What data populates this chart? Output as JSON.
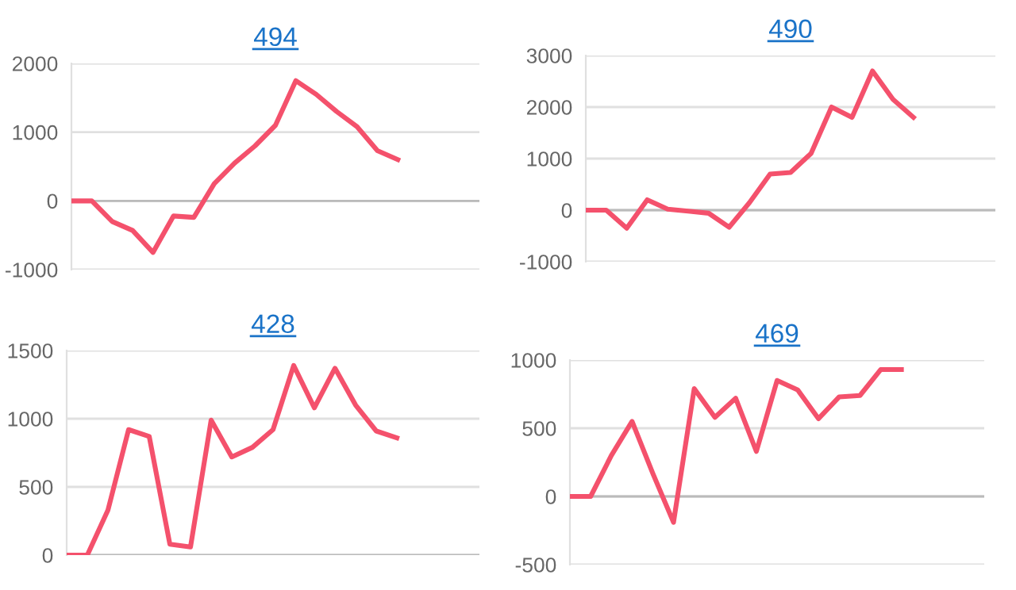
{
  "chart_data": [
    {
      "type": "line",
      "title": "494",
      "categories": [
        null,
        null,
        null,
        null,
        null,
        null,
        null,
        null,
        null,
        null,
        null,
        null,
        null,
        null,
        null,
        null,
        null,
        null,
        null,
        null,
        null
      ],
      "series": [
        {
          "color": "#f4516c",
          "values": [
            0,
            0,
            -300,
            -430,
            -750,
            -220,
            -240,
            250,
            550,
            800,
            1100,
            1750,
            1550,
            1300,
            1080,
            730,
            600,
            null,
            null,
            null,
            null
          ]
        }
      ],
      "ylim": [
        -1000,
        2000
      ],
      "yticks": [
        -1000,
        0,
        1000,
        2000
      ],
      "grid": "y",
      "tick_labels": "y",
      "marker": "none",
      "line_style": "solid"
    },
    {
      "type": "line",
      "title": "490",
      "categories": [
        null,
        null,
        null,
        null,
        null,
        null,
        null,
        null,
        null,
        null,
        null,
        null,
        null,
        null,
        null,
        null,
        null,
        null,
        null,
        null,
        null
      ],
      "series": [
        {
          "color": "#f4516c",
          "values": [
            0,
            0,
            -350,
            200,
            20,
            -20,
            -60,
            -330,
            150,
            700,
            730,
            1100,
            2000,
            1800,
            2700,
            2150,
            1800,
            null,
            null,
            null,
            null
          ]
        }
      ],
      "ylim": [
        -1000,
        3000
      ],
      "yticks": [
        -1000,
        0,
        1000,
        2000,
        3000
      ],
      "grid": "y",
      "tick_labels": "y",
      "marker": "none",
      "line_style": "solid"
    },
    {
      "type": "line",
      "title": "428",
      "categories": [
        null,
        null,
        null,
        null,
        null,
        null,
        null,
        null,
        null,
        null,
        null,
        null,
        null,
        null,
        null,
        null,
        null,
        null,
        null,
        null,
        null
      ],
      "series": [
        {
          "color": "#f4516c",
          "values": [
            0,
            0,
            330,
            920,
            870,
            80,
            60,
            990,
            720,
            790,
            920,
            1390,
            1080,
            1370,
            1100,
            910,
            860,
            null,
            null,
            null,
            null
          ]
        }
      ],
      "ylim": [
        0,
        1500
      ],
      "yticks": [
        0,
        500,
        1000,
        1500
      ],
      "grid": "y",
      "tick_labels": "y",
      "marker": "none",
      "line_style": "solid"
    },
    {
      "type": "line",
      "title": "469",
      "categories": [
        null,
        null,
        null,
        null,
        null,
        null,
        null,
        null,
        null,
        null,
        null,
        null,
        null,
        null,
        null,
        null,
        null,
        null,
        null,
        null,
        null
      ],
      "series": [
        {
          "color": "#f4516c",
          "values": [
            0,
            0,
            300,
            550,
            170,
            -190,
            790,
            580,
            720,
            330,
            850,
            780,
            570,
            730,
            740,
            930,
            930,
            null,
            null,
            null,
            null
          ]
        }
      ],
      "ylim": [
        -500,
        1000
      ],
      "yticks": [
        -500,
        0,
        500,
        1000
      ],
      "grid": "y",
      "tick_labels": "y",
      "marker": "none",
      "line_style": "solid"
    }
  ]
}
